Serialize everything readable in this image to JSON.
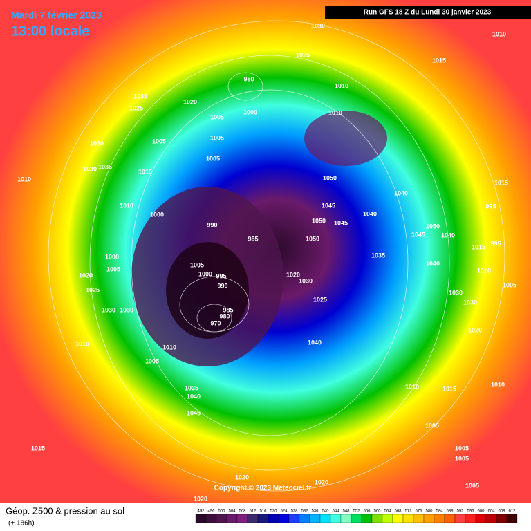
{
  "header": {
    "date": "Mardi 7 février 2023",
    "time": "13:00 locale",
    "run": "Run GFS 18 Z du Lundi 30 janvier 2023"
  },
  "copyright": "Copyright © 2023 Meteociel.fr",
  "footer": {
    "title": "Géop. Z500 & pression au sol",
    "lead": "(+ 186h)"
  },
  "isobar_labels": [
    1030,
    1010,
    1015,
    1025,
    980,
    1010,
    1030,
    1020,
    1025,
    1000,
    1010,
    1005,
    1005,
    1030,
    1005,
    1005,
    1035,
    1030,
    1015,
    1010,
    1050,
    1040,
    1015,
    1010,
    1045,
    1040,
    995,
    1000,
    990,
    1050,
    1045,
    1050,
    1045,
    1040,
    985,
    1050,
    1015,
    995,
    1000,
    1035,
    1005,
    1040,
    1005,
    1000,
    1020,
    995,
    1020,
    1030,
    1010,
    990,
    1005,
    1025,
    1030,
    1025,
    1030,
    985,
    1030,
    1030,
    980,
    970,
    1020,
    1010,
    1040,
    1010,
    1005,
    1035,
    1010,
    1040,
    1010,
    1015,
    1045,
    1005,
    1015,
    1005,
    1005,
    1020,
    1020,
    1005,
    1020
  ],
  "scale": {
    "values": [
      492,
      496,
      500,
      504,
      508,
      512,
      516,
      520,
      524,
      528,
      532,
      536,
      540,
      544,
      548,
      552,
      556,
      560,
      564,
      568,
      572,
      576,
      580,
      584,
      588,
      592,
      596,
      600,
      604,
      608,
      612
    ],
    "colors": [
      "#2a0a2a",
      "#3c0f3c",
      "#4f154f",
      "#6a1a6a",
      "#801f80",
      "#3d2c6d",
      "#1a1a7a",
      "#0000b0",
      "#0000e0",
      "#1e3cff",
      "#0080ff",
      "#00b4ff",
      "#00e0ff",
      "#40ffe0",
      "#80ffc0",
      "#00e060",
      "#00c000",
      "#80e000",
      "#c0ff00",
      "#ffff00",
      "#ffe000",
      "#ffc000",
      "#ffa000",
      "#ff8000",
      "#ff6000",
      "#ff4040",
      "#ff2020",
      "#e00000",
      "#c00000",
      "#800000",
      "#400000"
    ]
  }
}
